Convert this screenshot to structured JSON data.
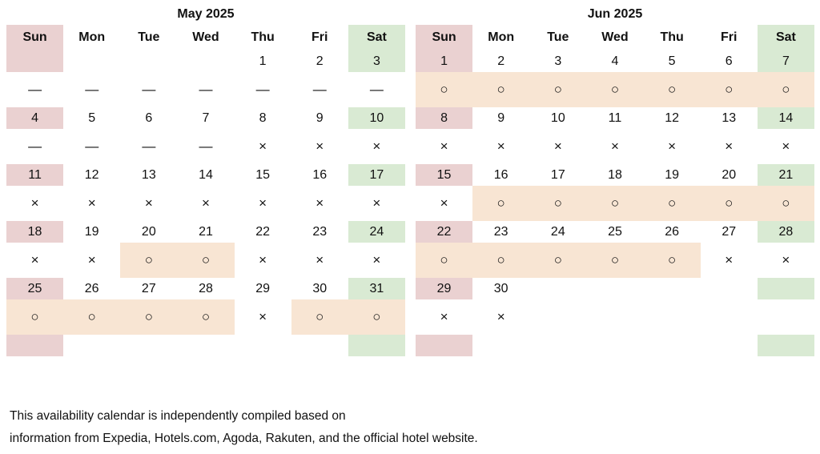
{
  "weekday_headers": [
    "Sun",
    "Mon",
    "Tue",
    "Wed",
    "Thu",
    "Fri",
    "Sat"
  ],
  "colors": {
    "sunday": "#ead1d1",
    "saturday": "#d9ead3",
    "available": "#f8e5d3"
  },
  "months": [
    {
      "title": "May 2025",
      "weeks": [
        {
          "days": [
            "",
            "",
            "",
            "",
            "1",
            "2",
            "3"
          ],
          "marks": [
            "—",
            "—",
            "—",
            "—",
            "—",
            "—",
            "—"
          ]
        },
        {
          "days": [
            "4",
            "5",
            "6",
            "7",
            "8",
            "9",
            "10"
          ],
          "marks": [
            "—",
            "—",
            "—",
            "—",
            "×",
            "×",
            "×"
          ]
        },
        {
          "days": [
            "11",
            "12",
            "13",
            "14",
            "15",
            "16",
            "17"
          ],
          "marks": [
            "×",
            "×",
            "×",
            "×",
            "×",
            "×",
            "×"
          ]
        },
        {
          "days": [
            "18",
            "19",
            "20",
            "21",
            "22",
            "23",
            "24"
          ],
          "marks": [
            "×",
            "×",
            "○",
            "○",
            "×",
            "×",
            "×"
          ]
        },
        {
          "days": [
            "25",
            "26",
            "27",
            "28",
            "29",
            "30",
            "31"
          ],
          "marks": [
            "○",
            "○",
            "○",
            "○",
            "×",
            "○",
            "○"
          ]
        },
        {
          "days": [
            "",
            "",
            "",
            "",
            "",
            "",
            ""
          ],
          "marks": [
            "",
            "",
            "",
            "",
            "",
            "",
            ""
          ]
        }
      ]
    },
    {
      "title": "Jun 2025",
      "weeks": [
        {
          "days": [
            "1",
            "2",
            "3",
            "4",
            "5",
            "6",
            "7"
          ],
          "marks": [
            "○",
            "○",
            "○",
            "○",
            "○",
            "○",
            "○"
          ]
        },
        {
          "days": [
            "8",
            "9",
            "10",
            "11",
            "12",
            "13",
            "14"
          ],
          "marks": [
            "×",
            "×",
            "×",
            "×",
            "×",
            "×",
            "×"
          ]
        },
        {
          "days": [
            "15",
            "16",
            "17",
            "18",
            "19",
            "20",
            "21"
          ],
          "marks": [
            "×",
            "○",
            "○",
            "○",
            "○",
            "○",
            "○"
          ]
        },
        {
          "days": [
            "22",
            "23",
            "24",
            "25",
            "26",
            "27",
            "28"
          ],
          "marks": [
            "○",
            "○",
            "○",
            "○",
            "○",
            "×",
            "×"
          ]
        },
        {
          "days": [
            "29",
            "30",
            "",
            "",
            "",
            "",
            ""
          ],
          "marks": [
            "×",
            "×",
            "",
            "",
            "",
            "",
            ""
          ]
        },
        {
          "days": [
            "",
            "",
            "",
            "",
            "",
            "",
            ""
          ],
          "marks": [
            "",
            "",
            "",
            "",
            "",
            "",
            ""
          ]
        }
      ]
    }
  ],
  "footnote": {
    "line1": "This availability calendar is independently compiled based on",
    "line2": "information from Expedia, Hotels.com, Agoda, Rakuten, and the official hotel website."
  }
}
